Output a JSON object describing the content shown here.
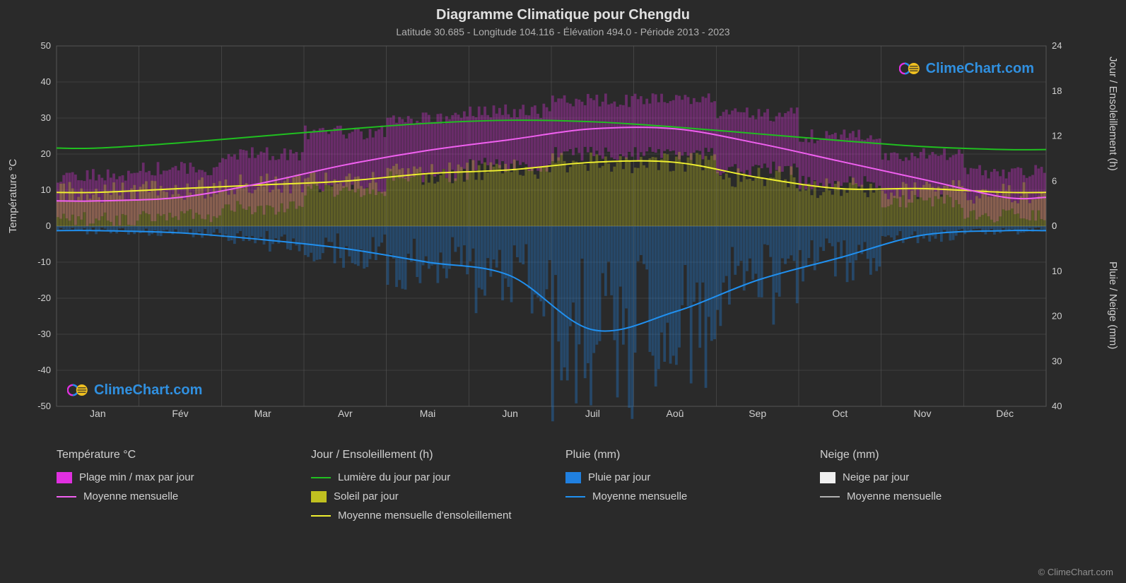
{
  "title": "Diagramme Climatique pour Chengdu",
  "subtitle": "Latitude 30.685 - Longitude 104.116 - Élévation 494.0 - Période 2013 - 2023",
  "axis_left_label": "Température °C",
  "axis_right_top_label": "Jour / Ensoleillement (h)",
  "axis_right_bottom_label": "Pluie / Neige (mm)",
  "watermark_text": "ClimeChart.com",
  "copyright": "© ClimeChart.com",
  "background_color": "#2a2a2a",
  "grid_color": "#555555",
  "text_color": "#d0d0d0",
  "title_fontsize": 20,
  "subtitle_fontsize": 14,
  "axis_fontsize": 15,
  "legend_fontsize": 15,
  "months": [
    "Jan",
    "Fév",
    "Mar",
    "Avr",
    "Mai",
    "Jun",
    "Juil",
    "Aoû",
    "Sep",
    "Oct",
    "Nov",
    "Déc"
  ],
  "temp_axis": {
    "min": -50,
    "max": 50,
    "ticks": [
      -50,
      -40,
      -30,
      -20,
      -10,
      0,
      10,
      20,
      30,
      40,
      50
    ]
  },
  "day_axis": {
    "min": 0,
    "max": 24,
    "ticks": [
      0,
      6,
      12,
      18,
      24
    ]
  },
  "rain_axis": {
    "min": 0,
    "max": 40,
    "ticks": [
      0,
      10,
      20,
      30,
      40
    ]
  },
  "colors": {
    "temp_range_fill": "#e030e0",
    "temp_range_opacity": 0.35,
    "temp_mean_line": "#f060f0",
    "daylight_line": "#20c020",
    "sunshine_fill": "#c0c020",
    "sunshine_opacity": 0.35,
    "sunshine_line": "#f0f030",
    "rain_fill": "#2080e0",
    "rain_opacity": 0.35,
    "rain_line": "#2090f0",
    "snow_fill": "#f0f0f0",
    "snow_line": "#b0b0b0"
  },
  "series": {
    "temp_min": [
      3,
      4,
      7,
      12,
      16,
      19,
      22,
      21,
      18,
      14,
      9,
      5
    ],
    "temp_max": [
      11,
      12,
      17,
      22,
      26,
      28,
      31,
      31,
      27,
      21,
      17,
      12
    ],
    "temp_mean": [
      7,
      8,
      12,
      17,
      21,
      24,
      27,
      27,
      23,
      18,
      13,
      8
    ],
    "daylight_h": [
      10.4,
      11.1,
      12.0,
      12.9,
      13.7,
      14.1,
      13.9,
      13.2,
      12.3,
      11.4,
      10.6,
      10.2
    ],
    "sunshine_h": [
      4.5,
      5,
      5.5,
      6,
      7,
      7.5,
      8.5,
      8.5,
      6.5,
      5,
      5,
      4.5
    ],
    "rain_mm": [
      1,
      1.5,
      3,
      5,
      8,
      11,
      23,
      19,
      12,
      7,
      2,
      1
    ]
  },
  "temp_daily_band": [
    {
      "lo": 2,
      "hi": 14
    },
    {
      "lo": 3,
      "hi": 16
    },
    {
      "lo": 5,
      "hi": 20
    },
    {
      "lo": 10,
      "hi": 26
    },
    {
      "lo": 14,
      "hi": 30
    },
    {
      "lo": 17,
      "hi": 32
    },
    {
      "lo": 20,
      "hi": 35
    },
    {
      "lo": 20,
      "hi": 35
    },
    {
      "lo": 16,
      "hi": 31
    },
    {
      "lo": 12,
      "hi": 25
    },
    {
      "lo": 7,
      "hi": 20
    },
    {
      "lo": 3,
      "hi": 15
    }
  ],
  "legend": {
    "temp": {
      "heading": "Température °C",
      "items": [
        {
          "type": "rect",
          "color": "#e030e0",
          "label": "Plage min / max par jour"
        },
        {
          "type": "line",
          "color": "#f060f0",
          "label": "Moyenne mensuelle"
        }
      ]
    },
    "day": {
      "heading": "Jour / Ensoleillement (h)",
      "items": [
        {
          "type": "line",
          "color": "#20c020",
          "label": "Lumière du jour par jour"
        },
        {
          "type": "rect",
          "color": "#c0c020",
          "label": "Soleil par jour"
        },
        {
          "type": "line",
          "color": "#f0f030",
          "label": "Moyenne mensuelle d'ensoleillement"
        }
      ]
    },
    "rain": {
      "heading": "Pluie (mm)",
      "items": [
        {
          "type": "rect",
          "color": "#2080e0",
          "label": "Pluie par jour"
        },
        {
          "type": "line",
          "color": "#2090f0",
          "label": "Moyenne mensuelle"
        }
      ]
    },
    "snow": {
      "heading": "Neige (mm)",
      "items": [
        {
          "type": "rect",
          "color": "#f0f0f0",
          "label": "Neige par jour"
        },
        {
          "type": "line",
          "color": "#b0b0b0",
          "label": "Moyenne mensuelle"
        }
      ]
    }
  }
}
